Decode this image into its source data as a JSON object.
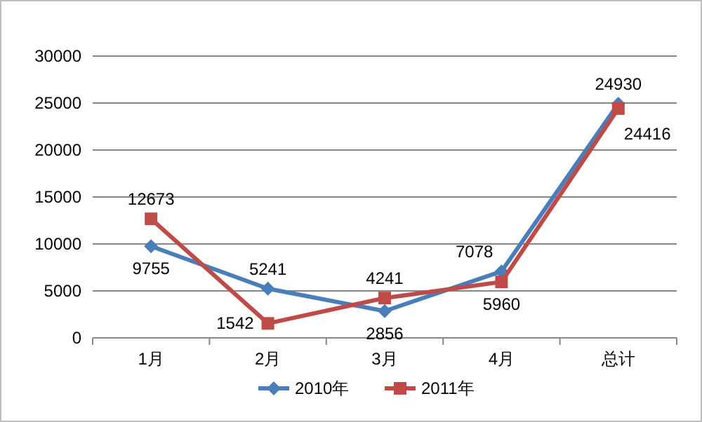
{
  "chart_data": {
    "type": "line",
    "categories": [
      "1月",
      "2月",
      "3月",
      "4月",
      "总计"
    ],
    "series": [
      {
        "name": "2010年",
        "color": "#4a7ebb",
        "marker": "diamond",
        "values": [
          9755,
          5241,
          2856,
          7078,
          24930
        ]
      },
      {
        "name": "2011年",
        "color": "#be4b48",
        "marker": "square",
        "values": [
          12673,
          1542,
          4241,
          5960,
          24416
        ]
      }
    ],
    "ylim": [
      0,
      30000
    ],
    "yticks": [
      0,
      5000,
      10000,
      15000,
      20000,
      25000,
      30000
    ],
    "grid": "y",
    "legend": "bottom",
    "data_labels": true,
    "line_style": "solid"
  }
}
